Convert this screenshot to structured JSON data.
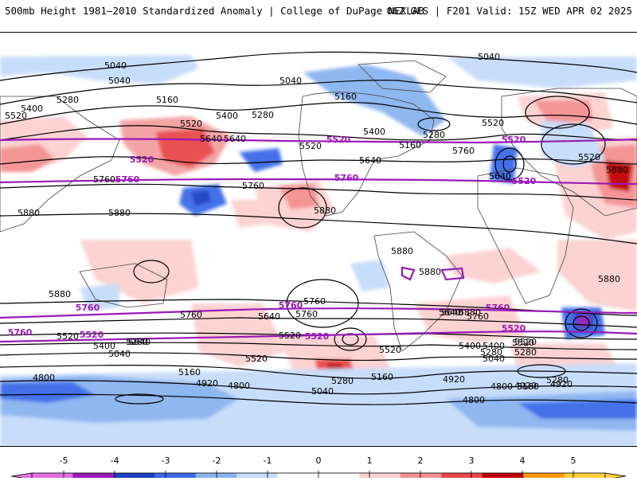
{
  "header": {
    "title": "500mb Height 1981–2010 Standardized Anomaly | College of DuPage NEXLAB",
    "run_info": "06Z GFS | F201 Valid: 15Z WED APR 02 2025"
  },
  "contour_labels": {
    "black": [
      "5040",
      "5040",
      "5040",
      "5040",
      "5280",
      "5160",
      "5400",
      "5520",
      "5520",
      "5400",
      "5280",
      "5520",
      "5640",
      "5160",
      "5400",
      "5280",
      "5520",
      "5640",
      "5160",
      "5520",
      "5640",
      "5640",
      "5880",
      "5760",
      "5760",
      "5880",
      "5880",
      "5760",
      "5880",
      "5880",
      "5880",
      "5880",
      "5880",
      "5760",
      "5880",
      "5760",
      "5760",
      "5640",
      "5640",
      "5760",
      "5400",
      "5520",
      "5520",
      "5280",
      "5640",
      "5400",
      "5280",
      "5520",
      "5520",
      "5520",
      "5160",
      "5040",
      "5160",
      "5280",
      "5040",
      "4920",
      "4800",
      "4920",
      "4800",
      "4920",
      "4800",
      "4800",
      "5160",
      "5280",
      "5640",
      "5520",
      "5400",
      "5280",
      "5040",
      "4920"
    ],
    "purple": [
      "5520",
      "5760",
      "5520",
      "5520",
      "5760",
      "5520",
      "5760",
      "5760",
      "5760",
      "5760",
      "5520",
      "5520",
      "5520"
    ]
  },
  "colorbar": {
    "ticks": [
      "-5",
      "-4",
      "-3",
      "-2",
      "-1",
      "0",
      "1",
      "2",
      "3",
      "4",
      "5"
    ],
    "colors": [
      "#e070e0",
      "#9a1ab8",
      "#1c40c0",
      "#3a6ae8",
      "#8ab4f0",
      "#c6dcfa",
      "#ffffff",
      "#ffffff",
      "#fcd0d0",
      "#f49090",
      "#e84848",
      "#c00000",
      "#ff9800",
      "#ffd040"
    ]
  },
  "colors": {
    "positive_anomaly": "#f4a0a0",
    "negative_anomaly": "#8ab4f0",
    "height_contour": "#000000",
    "highlight_contour": "#9a1ab8"
  }
}
